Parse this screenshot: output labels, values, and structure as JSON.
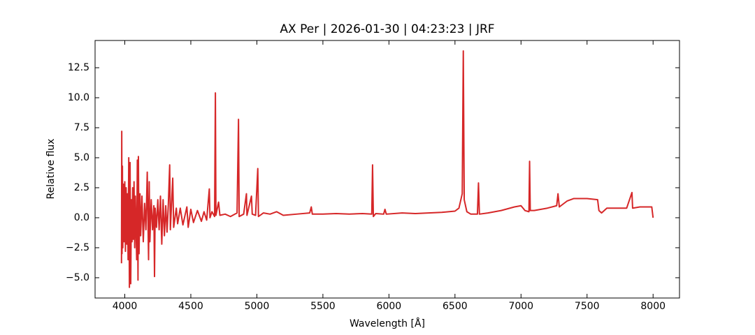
{
  "chart_data": {
    "type": "line",
    "title": "AX Per | 2026-01-30 | 04:23:23 | JRF",
    "x_label": "Wavelength [Å]",
    "y_label": "Relative flux",
    "color": "#d62728",
    "x": [
      3975,
      3977,
      3979,
      3982,
      3985,
      3990,
      3995,
      4000,
      4005,
      4010,
      4015,
      4020,
      4025,
      4030,
      4035,
      4040,
      4045,
      4050,
      4055,
      4060,
      4065,
      4070,
      4075,
      4080,
      4090,
      4095,
      4100,
      4103,
      4108,
      4115,
      4120,
      4130,
      4140,
      4150,
      4160,
      4170,
      4180,
      4185,
      4190,
      4200,
      4210,
      4220,
      4225,
      4230,
      4240,
      4250,
      4260,
      4270,
      4280,
      4290,
      4300,
      4310,
      4320,
      4330,
      4340,
      4345,
      4363,
      4370,
      4390,
      4400,
      4420,
      4440,
      4470,
      4480,
      4500,
      4520,
      4550,
      4580,
      4600,
      4620,
      4640,
      4645,
      4660,
      4680,
      4686,
      4690,
      4710,
      4720,
      4760,
      4800,
      4850,
      4861,
      4866,
      4900,
      4921,
      4925,
      4959,
      4965,
      4990,
      5007,
      5012,
      5050,
      5100,
      5150,
      5200,
      5300,
      5400,
      5412,
      5420,
      5500,
      5600,
      5700,
      5800,
      5870,
      5876,
      5882,
      5900,
      5960,
      5970,
      5980,
      6100,
      6200,
      6300,
      6400,
      6500,
      6530,
      6555,
      6563,
      6570,
      6590,
      6620,
      6670,
      6678,
      6685,
      6750,
      6850,
      6950,
      7000,
      7030,
      7060,
      7065,
      7070,
      7100,
      7200,
      7270,
      7280,
      7290,
      7350,
      7400,
      7500,
      7580,
      7590,
      7610,
      7650,
      7700,
      7800,
      7840,
      7845,
      7900,
      7990,
      8000
    ],
    "values": [
      -3.8,
      7.2,
      -3.0,
      4.3,
      -2.5,
      2.8,
      -2.0,
      3.0,
      -2.8,
      2.5,
      -2.2,
      2.0,
      -3.5,
      5.0,
      -5.8,
      4.6,
      -5.5,
      1.5,
      -2.0,
      2.5,
      -1.8,
      3.0,
      -2.5,
      1.8,
      -3.5,
      4.8,
      -5.2,
      5.1,
      -3.0,
      2.0,
      -1.5,
      1.8,
      -2.0,
      1.2,
      -1.0,
      3.8,
      -3.5,
      3.0,
      -2.0,
      1.5,
      -1.0,
      1.0,
      -4.9,
      0.8,
      -0.8,
      1.5,
      -1.0,
      1.8,
      -2.2,
      1.5,
      -1.5,
      1.0,
      -1.2,
      1.2,
      4.4,
      -1.0,
      3.3,
      -0.8,
      0.8,
      -0.5,
      0.8,
      -0.6,
      0.9,
      -0.8,
      0.7,
      -0.4,
      0.6,
      -0.3,
      0.5,
      -0.2,
      2.4,
      0.0,
      0.5,
      0.1,
      10.4,
      0.2,
      1.3,
      0.2,
      0.3,
      0.1,
      0.4,
      8.2,
      0.1,
      0.3,
      2.0,
      0.2,
      1.8,
      0.3,
      0.2,
      4.1,
      0.1,
      0.4,
      0.3,
      0.5,
      0.2,
      0.3,
      0.4,
      0.9,
      0.3,
      0.3,
      0.35,
      0.3,
      0.35,
      0.3,
      4.4,
      0.1,
      0.35,
      0.3,
      0.7,
      0.3,
      0.4,
      0.35,
      0.4,
      0.45,
      0.55,
      0.8,
      2.0,
      13.9,
      1.5,
      0.5,
      0.3,
      0.3,
      2.9,
      0.3,
      0.4,
      0.6,
      0.9,
      1.0,
      0.6,
      0.5,
      4.7,
      0.6,
      0.6,
      0.8,
      1.0,
      2.0,
      0.9,
      1.4,
      1.6,
      1.6,
      1.5,
      0.6,
      0.4,
      0.8,
      0.8,
      0.8,
      2.1,
      0.8,
      0.9,
      0.9,
      0.0
    ],
    "xlim": [
      3775,
      8200
    ],
    "ylim": [
      -6.69,
      14.77
    ],
    "xticks": [
      4000,
      4500,
      5000,
      5500,
      6000,
      6500,
      7000,
      7500,
      8000
    ],
    "yticks": [
      {
        "value": -5,
        "label": "−5.0"
      },
      {
        "value": -2.5,
        "label": "−2.5"
      },
      {
        "value": 0,
        "label": "0.0"
      },
      {
        "value": 2.5,
        "label": "2.5"
      },
      {
        "value": 5,
        "label": "5.0"
      },
      {
        "value": 7.5,
        "label": "7.5"
      },
      {
        "value": 10,
        "label": "10.0"
      },
      {
        "value": 12.5,
        "label": "12.5"
      }
    ]
  }
}
